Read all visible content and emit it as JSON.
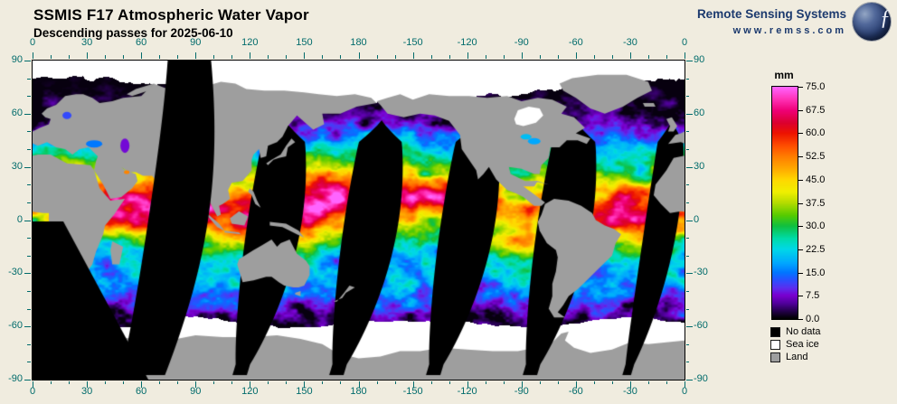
{
  "header": {
    "title": "SSMIS F17 Atmospheric Water Vapor",
    "subtitle": "Descending passes for 2025-06-10",
    "brand_name": "Remote Sensing Systems",
    "brand_url": "www.remss.com"
  },
  "axes": {
    "lon_labels": [
      "0",
      "30",
      "60",
      "90",
      "120",
      "150",
      "180",
      "-150",
      "-120",
      "-90",
      "-60",
      "-30",
      "0"
    ],
    "lat_labels": [
      "90",
      "60",
      "30",
      "0",
      "-30",
      "-60",
      "-90"
    ]
  },
  "colorbar": {
    "unit": "mm",
    "min": 0,
    "max": 75,
    "labels": [
      "75.0",
      "67.5",
      "60.0",
      "52.5",
      "45.0",
      "37.5",
      "30.0",
      "22.5",
      "15.0",
      "7.5",
      "0.0"
    ],
    "stops": [
      [
        0,
        "#000000"
      ],
      [
        2.5,
        "#26004d"
      ],
      [
        5,
        "#52009e"
      ],
      [
        7.5,
        "#7a00d0"
      ],
      [
        10,
        "#5a30f0"
      ],
      [
        12.5,
        "#2a50ff"
      ],
      [
        15,
        "#0078ff"
      ],
      [
        18,
        "#00a8ff"
      ],
      [
        22.5,
        "#00d8e8"
      ],
      [
        26,
        "#00dca8"
      ],
      [
        30,
        "#10c040"
      ],
      [
        33.5,
        "#58cc00"
      ],
      [
        37.5,
        "#b4dc00"
      ],
      [
        41,
        "#f0f000"
      ],
      [
        45,
        "#ffd800"
      ],
      [
        48.5,
        "#ffaa00"
      ],
      [
        52.5,
        "#ff7e00"
      ],
      [
        56,
        "#ff4e00"
      ],
      [
        60,
        "#ee1400"
      ],
      [
        63.5,
        "#dc0030"
      ],
      [
        67.5,
        "#f00078"
      ],
      [
        71,
        "#ff30b4"
      ],
      [
        75,
        "#ff64ff"
      ]
    ]
  },
  "legend": {
    "items": [
      {
        "label": "No data",
        "color": "#000000"
      },
      {
        "label": "Sea ice",
        "color": "#ffffff"
      },
      {
        "label": "Land",
        "color": "#9e9e9e"
      }
    ]
  },
  "colors": {
    "background": "#f0ecdf",
    "brand": "#1c3a6e",
    "axis": "#006b6b",
    "land": "#9e9e9e",
    "sea_ice": "#ffffff",
    "no_data": "#000000",
    "frame": "#000000"
  }
}
